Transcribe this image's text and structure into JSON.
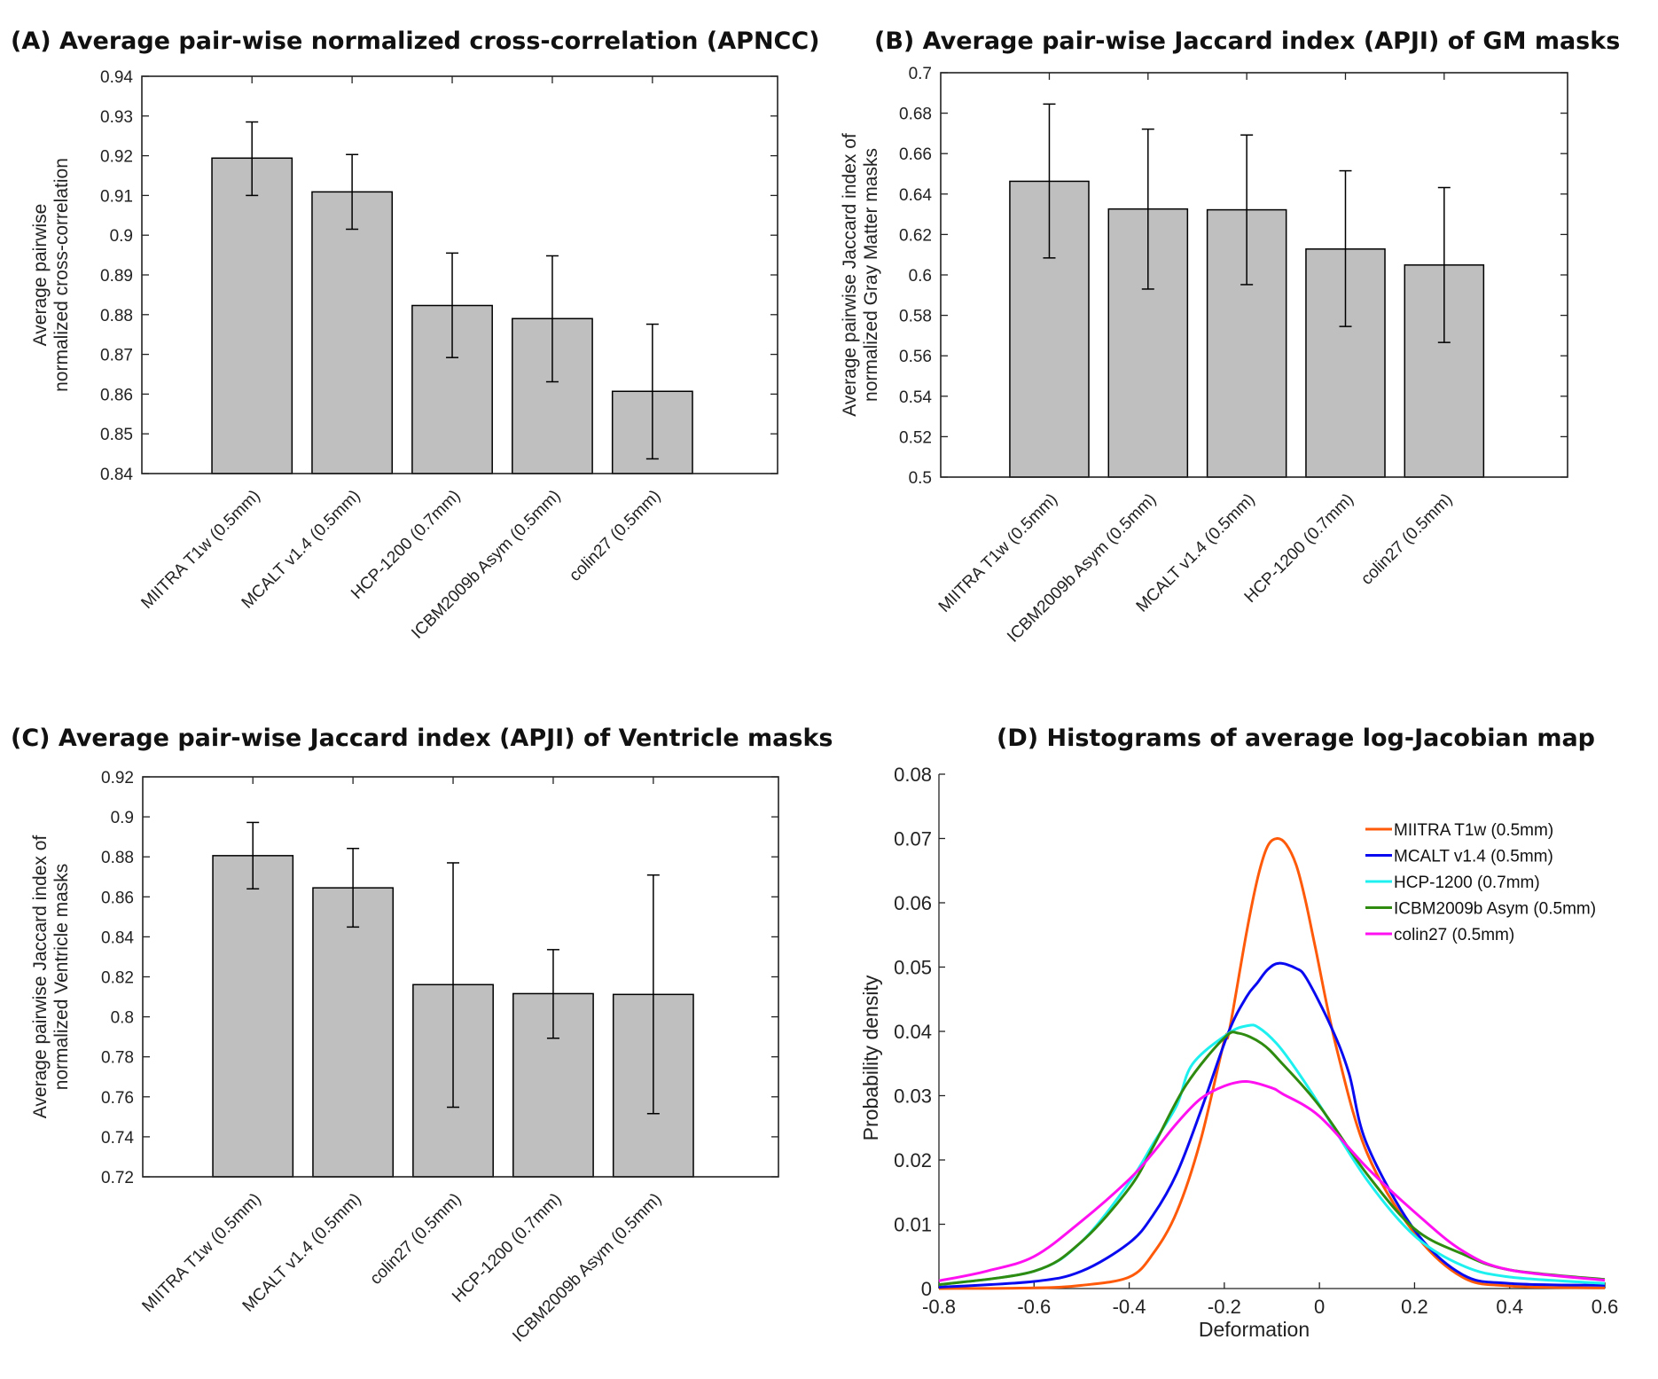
{
  "chart_data": [
    {
      "id": "A",
      "type": "bar",
      "title": "(A) Average pair-wise normalized cross-correlation (APNCC)",
      "xlabel": "",
      "ylabel": [
        "Average pairwise",
        "normalized cross-correlation"
      ],
      "ylim": [
        0.84,
        0.94
      ],
      "yticks": [
        0.84,
        0.85,
        0.86,
        0.87,
        0.88,
        0.89,
        0.9,
        0.91,
        0.92,
        0.93,
        0.94
      ],
      "ytick_labels": [
        "0.84",
        "0.85",
        "0.86",
        "0.87",
        "0.88",
        "0.89",
        "0.9",
        "0.91",
        "0.92",
        "0.93",
        "0.94"
      ],
      "categories": [
        "MIITRA T1w (0.5mm)",
        "MCALT v1.4 (0.5mm)",
        "HCP-1200 (0.7mm)",
        "ICBM2009b Asym (0.5mm)",
        "colin27 (0.5mm)"
      ],
      "values": [
        0.9194,
        0.9109,
        0.8823,
        0.879,
        0.8607
      ],
      "error_low": [
        0.91,
        0.9015,
        0.8692,
        0.8631,
        0.8437
      ],
      "error_high": [
        0.9285,
        0.9203,
        0.8955,
        0.8948,
        0.8776
      ],
      "bar_color": "#bfbfbf",
      "grid": false
    },
    {
      "id": "B",
      "type": "bar",
      "title": "(B) Average pair-wise Jaccard index (APJI) of GM masks",
      "xlabel": "",
      "ylabel": [
        "Average pairwise Jaccard index of",
        "normalized Gray Matter masks"
      ],
      "ylim": [
        0.5,
        0.7
      ],
      "yticks": [
        0.5,
        0.52,
        0.54,
        0.56,
        0.58,
        0.6,
        0.62,
        0.64,
        0.66,
        0.68,
        0.7
      ],
      "ytick_labels": [
        "0.5",
        "0.52",
        "0.54",
        "0.56",
        "0.58",
        "0.6",
        "0.62",
        "0.64",
        "0.66",
        "0.68",
        "0.7"
      ],
      "categories": [
        "MIITRA T1w (0.5mm)",
        "ICBM2009b Asym (0.5mm)",
        "MCALT v1.4 (0.5mm)",
        "HCP-1200 (0.7mm)",
        "colin27 (0.5mm)"
      ],
      "values": [
        0.6463,
        0.6326,
        0.6322,
        0.6128,
        0.6049
      ],
      "error_low": [
        0.6084,
        0.593,
        0.5952,
        0.5745,
        0.5666
      ],
      "error_high": [
        0.6845,
        0.6721,
        0.6692,
        0.6515,
        0.6432
      ],
      "bar_color": "#bfbfbf",
      "grid": false
    },
    {
      "id": "C",
      "type": "bar",
      "title": "(C) Average pair-wise Jaccard index (APJI) of Ventricle masks",
      "xlabel": "",
      "ylabel": [
        "Average pairwise Jaccard index of",
        "normalized Ventricle masks"
      ],
      "ylim": [
        0.72,
        0.92
      ],
      "yticks": [
        0.72,
        0.74,
        0.76,
        0.78,
        0.8,
        0.82,
        0.84,
        0.86,
        0.88,
        0.9,
        0.92
      ],
      "ytick_labels": [
        "0.72",
        "0.74",
        "0.76",
        "0.78",
        "0.8",
        "0.82",
        "0.84",
        "0.86",
        "0.88",
        "0.9",
        "0.92"
      ],
      "categories": [
        "MIITRA T1w (0.5mm)",
        "MCALT v1.4 (0.5mm)",
        "colin27 (0.5mm)",
        "HCP-1200 (0.7mm)",
        "ICBM2009b Asym (0.5mm)"
      ],
      "values": [
        0.8806,
        0.8645,
        0.8161,
        0.8116,
        0.8112
      ],
      "error_low": [
        0.864,
        0.8449,
        0.7548,
        0.7893,
        0.7516
      ],
      "error_high": [
        0.8972,
        0.8842,
        0.877,
        0.8336,
        0.8709
      ],
      "bar_color": "#bfbfbf",
      "grid": false
    },
    {
      "id": "D",
      "type": "line",
      "title": "(D) Histograms of average log-Jacobian map",
      "xlabel": "Deformation",
      "ylabel": [
        "Probability density"
      ],
      "xlim": [
        -0.8,
        0.6
      ],
      "ylim": [
        0,
        0.08
      ],
      "xticks": [
        -0.8,
        -0.6,
        -0.4,
        -0.2,
        0,
        0.2,
        0.4,
        0.6
      ],
      "xtick_labels": [
        "-0.8",
        "-0.6",
        "-0.4",
        "-0.2",
        "0",
        "0.2",
        "0.4",
        "0.6"
      ],
      "yticks": [
        0,
        0.01,
        0.02,
        0.03,
        0.04,
        0.05,
        0.06,
        0.07,
        0.08
      ],
      "ytick_labels": [
        "0",
        "0.01",
        "0.02",
        "0.03",
        "0.04",
        "0.05",
        "0.06",
        "0.07",
        "0.08"
      ],
      "legend_position": "top-right",
      "grid": false,
      "series": [
        {
          "name": "MIITRA T1w (0.5mm)",
          "color": "#ff5a0a",
          "x": [
            -0.8,
            -0.6,
            -0.5,
            -0.4,
            -0.35,
            -0.3,
            -0.25,
            -0.2,
            -0.19,
            -0.153,
            -0.129,
            -0.109,
            -0.089,
            -0.07,
            -0.049,
            -0.03,
            -0.008,
            0.035,
            0.1,
            0.2,
            0.3,
            0.4,
            0.6
          ],
          "y": [
            0.0,
            0.0001,
            0.0005,
            0.0018,
            0.0054,
            0.0119,
            0.023,
            0.0386,
            0.0399,
            0.0555,
            0.0641,
            0.0688,
            0.07,
            0.0691,
            0.0659,
            0.0606,
            0.0528,
            0.0377,
            0.0211,
            0.0086,
            0.0018,
            0.0004,
            0.0001
          ]
        },
        {
          "name": "MCALT v1.4 (0.5mm)",
          "color": "#0a0af0",
          "x": [
            -0.8,
            -0.6,
            -0.5,
            -0.4,
            -0.35,
            -0.3,
            -0.25,
            -0.191,
            -0.153,
            -0.131,
            -0.109,
            -0.085,
            -0.049,
            -0.027,
            0.024,
            0.062,
            0.1,
            0.2,
            0.3,
            0.4,
            0.6
          ],
          "y": [
            0.0002,
            0.0011,
            0.0027,
            0.0071,
            0.0114,
            0.0179,
            0.0275,
            0.0399,
            0.0454,
            0.0475,
            0.0496,
            0.0506,
            0.0498,
            0.0482,
            0.0408,
            0.0335,
            0.0224,
            0.0091,
            0.0022,
            0.0008,
            0.0005
          ]
        },
        {
          "name": "HCP-1200 (0.7mm)",
          "color": "#1ef0f0",
          "x": [
            -0.8,
            -0.6,
            -0.5,
            -0.4,
            -0.35,
            -0.3,
            -0.267,
            -0.191,
            -0.15,
            -0.128,
            -0.09,
            -0.052,
            0.0,
            0.1,
            0.2,
            0.3,
            0.4,
            0.6
          ],
          "y": [
            0.0006,
            0.0027,
            0.0073,
            0.0165,
            0.0225,
            0.0285,
            0.0349,
            0.0397,
            0.0409,
            0.0406,
            0.0381,
            0.0344,
            0.0286,
            0.0169,
            0.0082,
            0.0036,
            0.0018,
            0.0008
          ]
        },
        {
          "name": "ICBM2009b Asym (0.5mm)",
          "color": "#2e8b10",
          "x": [
            -0.8,
            -0.6,
            -0.5,
            -0.4,
            -0.35,
            -0.28,
            -0.2,
            -0.169,
            -0.121,
            -0.077,
            0.0,
            0.1,
            0.2,
            0.3,
            0.4,
            0.6
          ],
          "y": [
            0.0006,
            0.0027,
            0.0073,
            0.0156,
            0.022,
            0.0317,
            0.039,
            0.0397,
            0.0381,
            0.0349,
            0.0284,
            0.0178,
            0.0093,
            0.0054,
            0.0029,
            0.0014
          ]
        },
        {
          "name": "colin27 (0.5mm)",
          "color": "#ff10f0",
          "x": [
            -0.8,
            -0.7,
            -0.6,
            -0.5,
            -0.4,
            -0.35,
            -0.3,
            -0.25,
            -0.2,
            -0.153,
            -0.1,
            -0.078,
            0.0,
            0.1,
            0.2,
            0.3,
            0.4,
            0.6
          ],
          "y": [
            0.0012,
            0.0027,
            0.005,
            0.0105,
            0.017,
            0.0211,
            0.0257,
            0.0295,
            0.0315,
            0.0322,
            0.0312,
            0.0303,
            0.0268,
            0.0188,
            0.0119,
            0.0059,
            0.0029,
            0.0013
          ]
        }
      ]
    }
  ]
}
